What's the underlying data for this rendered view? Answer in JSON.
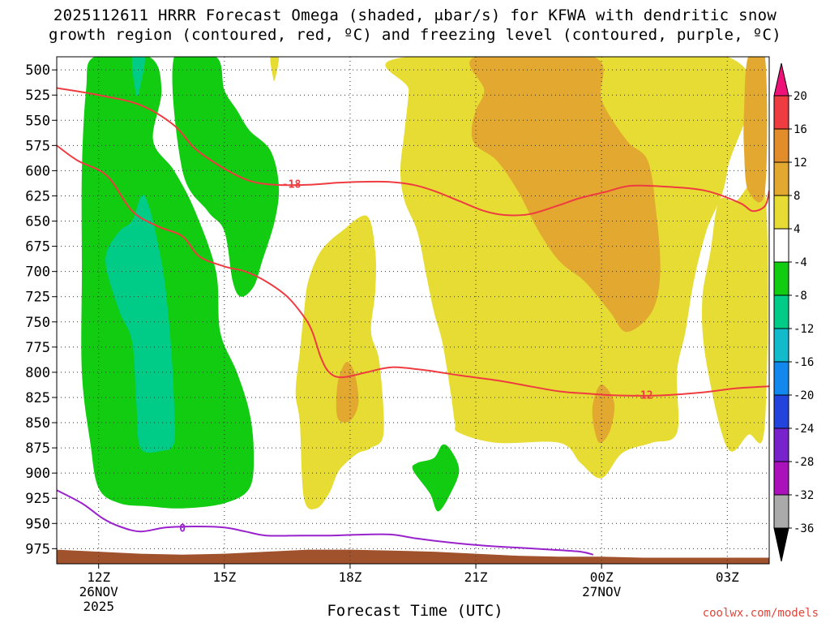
{
  "chart_data": {
    "type": "contour",
    "title_line1": "2025112611 HRRR Forecast Omega (shaded, μbar/s) for KFWA with dendritic snow",
    "title_line2": "growth region (contoured, red, ºC) and freezing level (contoured, purple, ºC)",
    "xlabel": "Forecast Time (UTC)",
    "credit": "coolwx.com/models",
    "y_axis": {
      "unit": "hPa",
      "reversed": true,
      "ticks": [
        "500",
        "525",
        "550",
        "575",
        "600",
        "625",
        "650",
        "675",
        "700",
        "725",
        "750",
        "775",
        "800",
        "825",
        "850",
        "875",
        "900",
        "925",
        "950",
        "975"
      ],
      "ylim": [
        487,
        990
      ]
    },
    "x_axis": {
      "unit": "hours",
      "xlim": [
        11,
        28
      ],
      "ticks": [
        {
          "hour": 12,
          "label": "12Z",
          "sub1": "26NOV",
          "sub2": "2025"
        },
        {
          "hour": 15,
          "label": "15Z",
          "sub1": "",
          "sub2": ""
        },
        {
          "hour": 18,
          "label": "18Z",
          "sub1": "",
          "sub2": ""
        },
        {
          "hour": 21,
          "label": "21Z",
          "sub1": "",
          "sub2": ""
        },
        {
          "hour": 24,
          "label": "00Z",
          "sub1": "27NOV",
          "sub2": ""
        },
        {
          "hour": 27,
          "label": "03Z",
          "sub1": "",
          "sub2": ""
        }
      ]
    },
    "colorbar": {
      "labels": [
        "20",
        "16",
        "12",
        "8",
        "4",
        "-4",
        "-8",
        "-12",
        "-16",
        "-20",
        "-24",
        "-28",
        "-32",
        "-36"
      ],
      "bins": [
        {
          "lo": 16,
          "hi": 20,
          "color": "#ee3c40"
        },
        {
          "lo": 12,
          "hi": 16,
          "color": "#e28c2a"
        },
        {
          "lo": 8,
          "hi": 12,
          "color": "#e2a830"
        },
        {
          "lo": 4,
          "hi": 8,
          "color": "#e6dc34"
        },
        {
          "lo": -4,
          "hi": 4,
          "color": "#ffffff"
        },
        {
          "lo": -8,
          "hi": -4,
          "color": "#11cc11"
        },
        {
          "lo": -12,
          "hi": -8,
          "color": "#00cc88"
        },
        {
          "lo": -16,
          "hi": -12,
          "color": "#11bbcc"
        },
        {
          "lo": -20,
          "hi": -16,
          "color": "#1188ee"
        },
        {
          "lo": -24,
          "hi": -20,
          "color": "#2244dd"
        },
        {
          "lo": -28,
          "hi": -24,
          "color": "#7722cc"
        },
        {
          "lo": -32,
          "hi": -28,
          "color": "#aa11bb"
        },
        {
          "lo": -36,
          "hi": -32,
          "color": "#aaaaaa"
        }
      ],
      "over_color": "#ee1177",
      "under_color": "#000000"
    },
    "shaded_regions": [
      {
        "name": "green-west",
        "color": "#11cc11",
        "points": [
          [
            11.9,
            487
          ],
          [
            13.2,
            487
          ],
          [
            13.5,
            520
          ],
          [
            13.3,
            570
          ],
          [
            13.8,
            600
          ],
          [
            14.3,
            640
          ],
          [
            14.8,
            700
          ],
          [
            14.9,
            760
          ],
          [
            15.3,
            800
          ],
          [
            15.6,
            840
          ],
          [
            15.7,
            880
          ],
          [
            15.6,
            915
          ],
          [
            15.0,
            930
          ],
          [
            14.0,
            935
          ],
          [
            13.2,
            933
          ],
          [
            12.5,
            930
          ],
          [
            12.0,
            915
          ],
          [
            11.8,
            870
          ],
          [
            11.6,
            800
          ],
          [
            11.6,
            700
          ],
          [
            11.6,
            600
          ],
          [
            11.7,
            520
          ]
        ]
      },
      {
        "name": "green-mid",
        "color": "#11cc11",
        "points": [
          [
            13.8,
            487
          ],
          [
            14.0,
            600
          ],
          [
            14.6,
            640
          ],
          [
            15.0,
            660
          ],
          [
            15.2,
            710
          ],
          [
            15.4,
            725
          ],
          [
            15.7,
            715
          ],
          [
            15.9,
            690
          ],
          [
            16.2,
            650
          ],
          [
            16.3,
            615
          ],
          [
            16.1,
            580
          ],
          [
            15.6,
            560
          ],
          [
            15.3,
            540
          ],
          [
            15.0,
            520
          ],
          [
            14.8,
            487
          ]
        ]
      },
      {
        "name": "teal-west",
        "color": "#00cc88",
        "points": [
          [
            12.8,
            487
          ],
          [
            13.1,
            487
          ],
          [
            13.0,
            515
          ],
          [
            12.9,
            525
          ]
        ]
      },
      {
        "name": "teal-lower",
        "color": "#00cc88",
        "points": [
          [
            13.1,
            625
          ],
          [
            13.5,
            690
          ],
          [
            13.7,
            760
          ],
          [
            13.8,
            830
          ],
          [
            13.8,
            870
          ],
          [
            13.5,
            878
          ],
          [
            13.0,
            875
          ],
          [
            12.9,
            830
          ],
          [
            12.8,
            770
          ],
          [
            12.5,
            740
          ],
          [
            12.2,
            700
          ],
          [
            12.2,
            680
          ],
          [
            12.5,
            660
          ],
          [
            12.8,
            650
          ]
        ]
      },
      {
        "name": "green-small",
        "color": "#11cc11",
        "points": [
          [
            20.0,
            885
          ],
          [
            20.2,
            872
          ],
          [
            20.4,
            877
          ],
          [
            20.6,
            897
          ],
          [
            20.4,
            920
          ],
          [
            20.1,
            938
          ],
          [
            19.9,
            920
          ],
          [
            19.5,
            897
          ],
          [
            19.6,
            890
          ]
        ]
      },
      {
        "name": "yellow-spike",
        "color": "#e6dc34",
        "points": [
          [
            16.1,
            487
          ],
          [
            16.3,
            487
          ],
          [
            16.2,
            510
          ],
          [
            16.15,
            505
          ]
        ]
      },
      {
        "name": "yellow-18z",
        "color": "#e6dc34",
        "points": [
          [
            17.0,
            710
          ],
          [
            17.3,
            680
          ],
          [
            17.8,
            660
          ],
          [
            18.4,
            645
          ],
          [
            18.6,
            680
          ],
          [
            18.6,
            720
          ],
          [
            18.5,
            760
          ],
          [
            18.7,
            790
          ],
          [
            18.8,
            860
          ],
          [
            18.5,
            875
          ],
          [
            18.2,
            880
          ],
          [
            17.9,
            890
          ],
          [
            17.7,
            900
          ],
          [
            17.5,
            920
          ],
          [
            17.2,
            935
          ],
          [
            16.9,
            925
          ],
          [
            16.8,
            850
          ],
          [
            16.7,
            820
          ],
          [
            16.8,
            780
          ],
          [
            16.9,
            740
          ]
        ]
      },
      {
        "name": "orange-18z",
        "color": "#e2a830",
        "points": [
          [
            17.7,
            812
          ],
          [
            17.9,
            790
          ],
          [
            18.1,
            800
          ],
          [
            18.2,
            830
          ],
          [
            18.0,
            848
          ],
          [
            17.7,
            845
          ]
        ]
      },
      {
        "name": "yellow-main",
        "color": "#e6dc34",
        "points": [
          [
            19.4,
            487
          ],
          [
            27.0,
            487
          ],
          [
            27.0,
            600
          ],
          [
            26.5,
            660
          ],
          [
            26.2,
            710
          ],
          [
            26.0,
            760
          ],
          [
            25.8,
            800
          ],
          [
            25.8,
            860
          ],
          [
            25.2,
            870
          ],
          [
            24.5,
            880
          ],
          [
            24.0,
            905
          ],
          [
            23.5,
            890
          ],
          [
            23.0,
            870
          ],
          [
            21.5,
            870
          ],
          [
            20.6,
            860
          ],
          [
            20.5,
            850
          ],
          [
            20.4,
            820
          ],
          [
            20.2,
            770
          ],
          [
            20.0,
            740
          ],
          [
            19.8,
            700
          ],
          [
            19.6,
            660
          ],
          [
            19.3,
            630
          ],
          [
            19.2,
            600
          ],
          [
            19.3,
            560
          ],
          [
            19.4,
            520
          ]
        ]
      },
      {
        "name": "yellow-east",
        "color": "#e6dc34",
        "points": [
          [
            26.8,
            630
          ],
          [
            27.2,
            630
          ],
          [
            27.9,
            620
          ],
          [
            27.9,
            850
          ],
          [
            27.5,
            862
          ],
          [
            27.0,
            875
          ],
          [
            26.5,
            790
          ],
          [
            26.4,
            730
          ],
          [
            26.6,
            680
          ]
        ]
      },
      {
        "name": "orange-main",
        "color": "#e2a830",
        "points": [
          [
            21.0,
            487
          ],
          [
            23.8,
            487
          ],
          [
            24.0,
            530
          ],
          [
            24.6,
            570
          ],
          [
            25.1,
            590
          ],
          [
            25.3,
            640
          ],
          [
            25.4,
            700
          ],
          [
            25.2,
            740
          ],
          [
            24.6,
            760
          ],
          [
            24.2,
            740
          ],
          [
            23.6,
            710
          ],
          [
            23.0,
            690
          ],
          [
            22.5,
            660
          ],
          [
            22.0,
            620
          ],
          [
            21.5,
            590
          ],
          [
            21.0,
            575
          ],
          [
            20.9,
            560
          ],
          [
            21.0,
            540
          ],
          [
            21.2,
            520
          ]
        ]
      },
      {
        "name": "orange-east",
        "color": "#e2a830",
        "points": [
          [
            27.5,
            487
          ],
          [
            27.9,
            487
          ],
          [
            27.9,
            620
          ],
          [
            27.5,
            620
          ],
          [
            27.4,
            580
          ],
          [
            27.4,
            540
          ]
        ]
      },
      {
        "name": "orange-00z",
        "color": "#e2a830",
        "points": [
          [
            23.8,
            830
          ],
          [
            24.0,
            812
          ],
          [
            24.3,
            830
          ],
          [
            24.2,
            858
          ],
          [
            23.95,
            870
          ],
          [
            23.8,
            850
          ]
        ]
      }
    ],
    "contours": [
      {
        "name": "dgz-minus18",
        "color": "#ee3c40",
        "label": "-18",
        "label_at": [
          16.6,
          613
        ],
        "points": [
          [
            11.0,
            518
          ],
          [
            12.0,
            525
          ],
          [
            13.0,
            535
          ],
          [
            13.8,
            555
          ],
          [
            14.3,
            578
          ],
          [
            15.0,
            598
          ],
          [
            15.6,
            610
          ],
          [
            16.2,
            614
          ],
          [
            17.0,
            614
          ],
          [
            17.7,
            612
          ],
          [
            18.3,
            611
          ],
          [
            18.9,
            611
          ],
          [
            19.5,
            614
          ],
          [
            20.0,
            620
          ],
          [
            20.6,
            630
          ],
          [
            21.2,
            640
          ],
          [
            21.7,
            644
          ],
          [
            22.3,
            643
          ],
          [
            23.0,
            634
          ],
          [
            23.5,
            627
          ],
          [
            24.1,
            621
          ],
          [
            24.7,
            615
          ],
          [
            25.6,
            616
          ],
          [
            26.5,
            620
          ],
          [
            27.3,
            632
          ],
          [
            27.6,
            640
          ],
          [
            27.9,
            635
          ],
          [
            28.0,
            620
          ]
        ]
      },
      {
        "name": "dgz-minus12",
        "color": "#ee3c40",
        "label": "-12",
        "label_at": [
          25.0,
          822
        ],
        "points": [
          [
            11.0,
            575
          ],
          [
            11.5,
            590
          ],
          [
            12.2,
            605
          ],
          [
            12.8,
            640
          ],
          [
            13.4,
            655
          ],
          [
            14.0,
            665
          ],
          [
            14.4,
            685
          ],
          [
            15.0,
            695
          ],
          [
            15.5,
            700
          ],
          [
            16.0,
            710
          ],
          [
            16.5,
            725
          ],
          [
            16.9,
            745
          ],
          [
            17.1,
            760
          ],
          [
            17.3,
            785
          ],
          [
            17.5,
            800
          ],
          [
            17.8,
            805
          ],
          [
            18.4,
            800
          ],
          [
            19.0,
            795
          ],
          [
            19.8,
            798
          ],
          [
            20.6,
            803
          ],
          [
            21.5,
            808
          ],
          [
            22.3,
            814
          ],
          [
            23.0,
            819
          ],
          [
            23.6,
            821
          ],
          [
            24.4,
            823
          ],
          [
            25.4,
            823
          ],
          [
            26.4,
            820
          ],
          [
            27.2,
            816
          ],
          [
            28.0,
            814
          ]
        ]
      },
      {
        "name": "freezing-0",
        "color": "#9922cc",
        "label": "0",
        "label_at": [
          14.0,
          954
        ],
        "points": [
          [
            11.0,
            917
          ],
          [
            11.6,
            930
          ],
          [
            12.1,
            945
          ],
          [
            12.5,
            953
          ],
          [
            13.0,
            958
          ],
          [
            13.6,
            954
          ],
          [
            14.3,
            953
          ],
          [
            15.0,
            954
          ],
          [
            15.5,
            958
          ],
          [
            16.0,
            962
          ],
          [
            16.8,
            962
          ],
          [
            17.5,
            962
          ],
          [
            18.3,
            961
          ],
          [
            19.0,
            961
          ],
          [
            19.6,
            965
          ],
          [
            20.4,
            969
          ],
          [
            21.2,
            972
          ],
          [
            22.0,
            974
          ],
          [
            22.8,
            976
          ],
          [
            23.5,
            978
          ],
          [
            23.8,
            981
          ]
        ]
      }
    ],
    "terrain_color": "#a0522d",
    "terrain": [
      [
        11.0,
        976
      ],
      [
        12.0,
        978
      ],
      [
        13.0,
        980
      ],
      [
        14.0,
        981
      ],
      [
        15.0,
        980
      ],
      [
        16.0,
        978
      ],
      [
        17.0,
        976
      ],
      [
        18.0,
        976
      ],
      [
        19.0,
        977
      ],
      [
        20.0,
        978
      ],
      [
        21.0,
        980
      ],
      [
        22.0,
        982
      ],
      [
        23.0,
        983
      ],
      [
        24.0,
        983
      ],
      [
        25.0,
        984
      ],
      [
        26.0,
        984
      ],
      [
        27.0,
        984
      ],
      [
        28.0,
        984
      ]
    ]
  }
}
